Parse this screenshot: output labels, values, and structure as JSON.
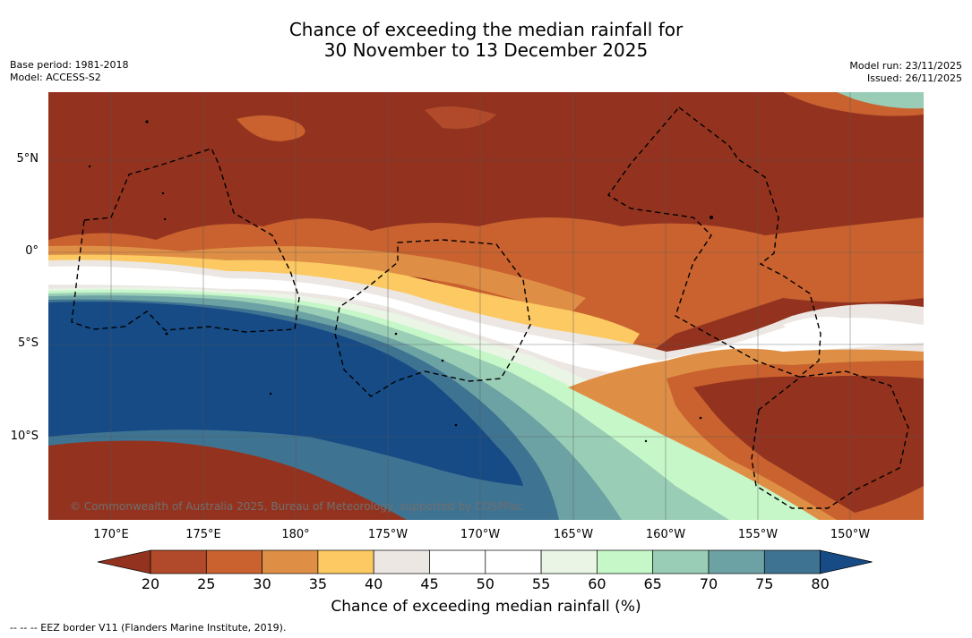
{
  "title": {
    "line1": "Chance of exceeding the median rainfall for",
    "line2": "30 November to 13 December 2025"
  },
  "meta_left": {
    "base_period": "Base period: 1981-2018",
    "model": "Model: ACCESS-S2"
  },
  "meta_right": {
    "model_run": "Model run: 23/11/2025",
    "issued": "Issued: 26/11/2025"
  },
  "copyright": "© Commonwealth of Australia 2025, Bureau of Meteorology, supported by COSPPac",
  "lat_labels": [
    "5°N",
    "0°",
    "5°S",
    "10°S"
  ],
  "lon_labels": [
    "170°E",
    "175°E",
    "180°",
    "175°W",
    "170°W",
    "165°W",
    "160°W",
    "155°W",
    "150°W"
  ],
  "colorbar": {
    "ticks": [
      "20",
      "25",
      "30",
      "35",
      "40",
      "45",
      "50",
      "55",
      "60",
      "65",
      "70",
      "75",
      "80"
    ],
    "colors": [
      "#93331f",
      "#b04a2a",
      "#c9622f",
      "#df8f45",
      "#fcc963",
      "#ece7e3",
      "#ffffff",
      "#ffffff",
      "#eaf5e6",
      "#c6f7c8",
      "#99cdb6",
      "#6ca2a4",
      "#3f7392",
      "#164b85"
    ],
    "label": "Chance of exceeding median rainfall (%)"
  },
  "eez_note": "--  --  -- EEZ border V11 (Flanders Marine Institute, 2019)."
}
